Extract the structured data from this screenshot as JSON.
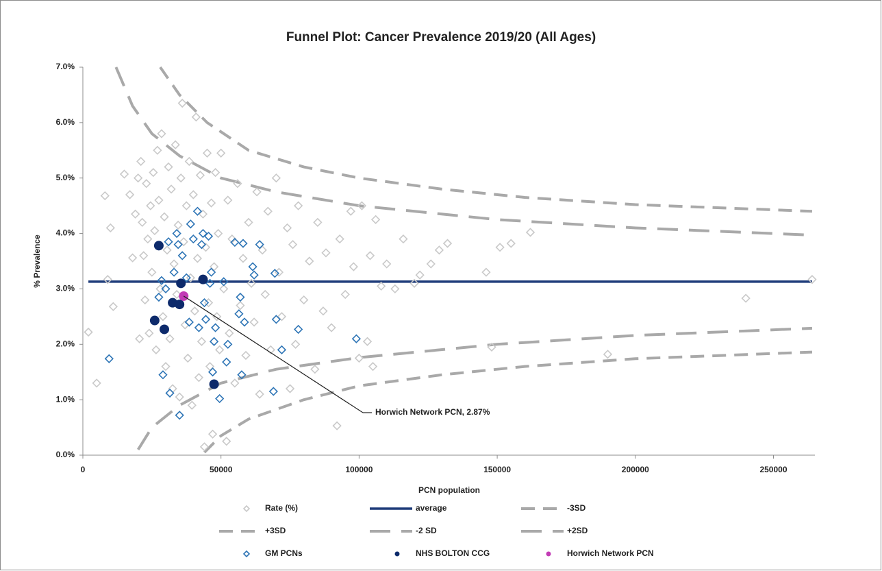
{
  "chart_data": {
    "type": "scatter",
    "title": "Funnel Plot: Cancer Prevalence 2019/20 (All Ages)",
    "x_label": "PCN population",
    "y_label": "% Prevalence",
    "xlim": [
      0,
      265000
    ],
    "xticks": [
      0,
      50000,
      100000,
      150000,
      200000,
      250000
    ],
    "ylim": [
      0,
      7
    ],
    "yticks": [
      {
        "value": 0,
        "label": "0.0%"
      },
      {
        "value": 1,
        "label": "1.0%"
      },
      {
        "value": 2,
        "label": "2.0%"
      },
      {
        "value": 3,
        "label": "3.0%"
      },
      {
        "value": 4,
        "label": "4.0%"
      },
      {
        "value": 5,
        "label": "5.0%"
      },
      {
        "value": 6,
        "label": "6.0%"
      },
      {
        "value": 7,
        "label": "7.0%"
      }
    ],
    "annotation": {
      "text": "Horwich Network PCN, 2.87%"
    },
    "series": [
      {
        "name": "Rate (%)",
        "marker": "diamond",
        "color": "#c9c9c9",
        "x": [
          2000,
          5000,
          8000,
          9000,
          10000,
          11000,
          15000,
          17000,
          18000,
          19000,
          20000,
          20500,
          21000,
          21500,
          22000,
          22500,
          23000,
          23500,
          24000,
          24500,
          25000,
          25500,
          26000,
          26500,
          27000,
          27500,
          28000,
          28500,
          29000,
          29500,
          30000,
          30500,
          31000,
          31500,
          32000,
          32500,
          33000,
          33500,
          34000,
          34500,
          35000,
          35500,
          36000,
          36500,
          37000,
          37500,
          38000,
          38500,
          39000,
          39500,
          40000,
          40500,
          41000,
          41500,
          42000,
          42500,
          43000,
          43500,
          44000,
          44500,
          45000,
          45500,
          46000,
          46500,
          47000,
          47500,
          48000,
          48500,
          49000,
          49500,
          50000,
          51000,
          52000,
          52500,
          53000,
          54000,
          55000,
          56000,
          57000,
          58000,
          59000,
          60000,
          61000,
          62000,
          63000,
          64000,
          65000,
          66000,
          67000,
          68000,
          70000,
          71000,
          72000,
          74000,
          75000,
          76000,
          77000,
          78000,
          80000,
          82000,
          84000,
          85000,
          87000,
          88000,
          90000,
          92000,
          93000,
          95000,
          97000,
          98000,
          100000,
          101000,
          103000,
          104000,
          105000,
          106000,
          108000,
          110000,
          113000,
          116000,
          120000,
          122000,
          126000,
          129000,
          132000,
          146000,
          148000,
          151000,
          155000,
          162000,
          190000,
          240000,
          264000
        ],
        "values": [
          2.22,
          1.3,
          4.68,
          3.17,
          4.1,
          2.68,
          5.07,
          4.7,
          3.56,
          4.35,
          5.0,
          2.1,
          5.3,
          4.2,
          3.6,
          2.8,
          4.9,
          3.9,
          2.2,
          4.5,
          3.3,
          5.1,
          4.05,
          1.9,
          5.5,
          4.6,
          3.0,
          5.8,
          2.5,
          4.3,
          1.6,
          3.7,
          5.2,
          2.1,
          4.8,
          1.2,
          3.45,
          5.6,
          2.9,
          4.15,
          1.05,
          5.0,
          6.35,
          3.85,
          2.35,
          4.5,
          1.75,
          5.3,
          3.2,
          0.9,
          4.7,
          2.6,
          6.1,
          3.55,
          1.4,
          5.05,
          2.05,
          4.35,
          0.15,
          3.75,
          5.45,
          2.75,
          1.6,
          4.55,
          0.38,
          3.4,
          5.1,
          2.5,
          4.0,
          1.9,
          5.45,
          3.0,
          0.25,
          4.6,
          2.2,
          3.9,
          1.3,
          4.9,
          2.7,
          3.55,
          1.8,
          4.2,
          3.1,
          2.4,
          4.75,
          1.1,
          3.7,
          2.9,
          4.4,
          1.9,
          5.0,
          3.3,
          2.5,
          4.1,
          1.2,
          3.8,
          2.0,
          4.5,
          2.8,
          3.5,
          1.55,
          4.2,
          2.6,
          3.65,
          2.3,
          0.53,
          3.9,
          2.9,
          4.4,
          3.4,
          1.75,
          4.5,
          2.05,
          3.6,
          1.6,
          4.25,
          3.05,
          3.45,
          3.0,
          3.9,
          3.1,
          3.25,
          3.45,
          3.7,
          3.82,
          3.3,
          1.95,
          3.75,
          3.82,
          4.02,
          1.82,
          2.83,
          3.17
        ]
      },
      {
        "name": "average",
        "marker": "line",
        "dash": "solid",
        "color": "#1f3c7a",
        "x": [
          2000,
          264000
        ],
        "values": [
          3.13,
          3.13
        ]
      },
      {
        "name": "-3SD",
        "marker": "line",
        "dash": "short",
        "color": "#a9a9a9",
        "x": [
          44000,
          50000,
          60000,
          80000,
          100000,
          130000,
          160000,
          200000,
          264000
        ],
        "values": [
          0.05,
          0.35,
          0.65,
          1.0,
          1.25,
          1.45,
          1.6,
          1.74,
          1.86
        ]
      },
      {
        "name": "+3SD",
        "marker": "line",
        "dash": "short",
        "color": "#a9a9a9",
        "x": [
          28000,
          35000,
          45000,
          60000,
          80000,
          100000,
          130000,
          160000,
          200000,
          264000
        ],
        "values": [
          7.0,
          6.5,
          6.0,
          5.5,
          5.2,
          5.0,
          4.8,
          4.65,
          4.52,
          4.4
        ]
      },
      {
        "name": "-2 SD",
        "marker": "line",
        "dash": "long",
        "color": "#a9a9a9",
        "x": [
          20000,
          25000,
          35000,
          50000,
          70000,
          100000,
          150000,
          200000,
          264000
        ],
        "values": [
          0.1,
          0.5,
          0.9,
          1.3,
          1.55,
          1.76,
          2.0,
          2.16,
          2.29
        ]
      },
      {
        "name": "+2SD",
        "marker": "line",
        "dash": "long",
        "color": "#a9a9a9",
        "x": [
          12000,
          18000,
          25000,
          35000,
          50000,
          70000,
          100000,
          150000,
          200000,
          264000
        ],
        "values": [
          7.0,
          6.3,
          5.8,
          5.4,
          5.0,
          4.75,
          4.5,
          4.25,
          4.1,
          3.97
        ]
      },
      {
        "name": "GM PCNs",
        "marker": "diamond",
        "color": "#2e75b6",
        "x": [
          9500,
          27500,
          28500,
          29000,
          30000,
          31000,
          31500,
          33000,
          34000,
          34500,
          35000,
          36000,
          37500,
          38500,
          39000,
          40000,
          41500,
          42000,
          43000,
          43500,
          44000,
          44500,
          45500,
          46000,
          46500,
          47000,
          47500,
          48000,
          49500,
          51000,
          52000,
          52500,
          55000,
          56500,
          57000,
          57500,
          58000,
          58500,
          61500,
          62000,
          64000,
          69000,
          69500,
          70000,
          72000,
          78000,
          99000
        ],
        "values": [
          1.74,
          2.85,
          3.15,
          1.45,
          3.0,
          3.85,
          1.12,
          3.3,
          4.0,
          3.8,
          0.72,
          3.6,
          3.2,
          2.4,
          4.17,
          3.9,
          4.4,
          2.3,
          3.8,
          4.0,
          2.75,
          2.45,
          3.95,
          3.1,
          3.3,
          1.5,
          2.05,
          2.3,
          1.02,
          3.13,
          1.68,
          2.0,
          3.84,
          2.55,
          2.85,
          1.45,
          3.82,
          2.4,
          3.4,
          3.25,
          3.8,
          1.15,
          3.28,
          2.45,
          1.9,
          2.27,
          2.1
        ]
      },
      {
        "name": "NHS BOLTON CCG",
        "marker": "circle",
        "color": "#0d2a6b",
        "x": [
          27500,
          26000,
          29500,
          32500,
          35000,
          35500,
          43500,
          47500
        ],
        "values": [
          3.78,
          2.43,
          2.27,
          2.75,
          2.72,
          3.1,
          3.17,
          1.28
        ]
      },
      {
        "name": "Horwich Network PCN",
        "marker": "circle",
        "color": "#c23bb5",
        "x": [
          36500
        ],
        "values": [
          2.87
        ]
      }
    ]
  }
}
